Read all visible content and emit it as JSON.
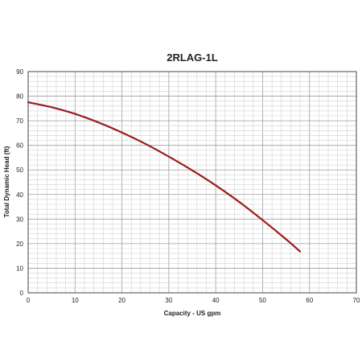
{
  "chart_data": {
    "type": "line",
    "title": "2RLAG-1L",
    "xlabel": "Capacity - US gpm",
    "ylabel": "Total Dynamic Head (ft)",
    "xlim": [
      0,
      70
    ],
    "ylim": [
      0,
      90
    ],
    "x_ticks": [
      0,
      10,
      20,
      30,
      40,
      50,
      60,
      70
    ],
    "y_ticks": [
      0,
      10,
      20,
      30,
      40,
      50,
      60,
      70,
      80,
      90
    ],
    "grid": true,
    "line_color": "#9b1b1b",
    "series": [
      {
        "x": [
          0,
          5,
          10,
          15,
          20,
          25,
          30,
          35,
          40,
          45,
          50,
          55,
          58
        ],
        "values": [
          77.5,
          75.5,
          72.8,
          69.3,
          65.2,
          60.6,
          55.4,
          49.8,
          43.7,
          37.0,
          29.6,
          21.8,
          16.8
        ]
      }
    ]
  }
}
